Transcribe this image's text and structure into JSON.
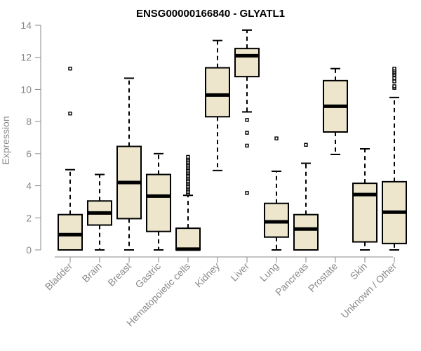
{
  "chart_data": {
    "type": "boxplot",
    "title": "ENSG00000166840 - GLYATL1",
    "xlabel": "",
    "ylabel": "Expression",
    "ylim": [
      0,
      14
    ],
    "yticks": [
      0,
      2,
      4,
      6,
      8,
      10,
      12,
      14
    ],
    "box_color": "#ede6cc",
    "categories": [
      "Bladder",
      "Brain",
      "Breast",
      "Gastric",
      "Hematopoietic cells",
      "Kidney",
      "Liver",
      "Lung",
      "Pancreas",
      "Prostate",
      "Skin",
      "Unknown / Other"
    ],
    "boxes": [
      {
        "whisker_low": 0.0,
        "q1": 0.0,
        "median": 0.95,
        "q3": 2.2,
        "whisker_high": 5.0,
        "outliers": [
          8.5,
          11.3
        ]
      },
      {
        "whisker_low": 0.0,
        "q1": 1.55,
        "median": 2.3,
        "q3": 3.05,
        "whisker_high": 4.7,
        "outliers": []
      },
      {
        "whisker_low": 0.0,
        "q1": 1.95,
        "median": 4.2,
        "q3": 6.45,
        "whisker_high": 10.7,
        "outliers": []
      },
      {
        "whisker_low": 0.0,
        "q1": 1.15,
        "median": 3.35,
        "q3": 4.7,
        "whisker_high": 6.0,
        "outliers": []
      },
      {
        "whisker_low": 0.0,
        "q1": 0.0,
        "median": 0.05,
        "q3": 1.35,
        "whisker_high": 3.4,
        "outliers": [
          3.5,
          3.6,
          3.7,
          3.8,
          3.9,
          4.0,
          4.1,
          4.2,
          4.3,
          4.4,
          4.5,
          4.6,
          4.7,
          4.8,
          4.9,
          5.0,
          5.1,
          5.2,
          5.3,
          5.4,
          5.5,
          5.6,
          5.7,
          5.8
        ]
      },
      {
        "whisker_low": 4.95,
        "q1": 8.3,
        "median": 9.65,
        "q3": 11.35,
        "whisker_high": 13.05,
        "outliers": []
      },
      {
        "whisker_low": 8.6,
        "q1": 10.8,
        "median": 12.1,
        "q3": 12.55,
        "whisker_high": 13.7,
        "outliers": [
          3.55,
          6.5,
          7.3,
          8.1
        ]
      },
      {
        "whisker_low": 0.0,
        "q1": 0.8,
        "median": 1.75,
        "q3": 2.9,
        "whisker_high": 4.9,
        "outliers": [
          6.95
        ]
      },
      {
        "whisker_low": 0.0,
        "q1": 0.0,
        "median": 1.3,
        "q3": 2.2,
        "whisker_high": 5.4,
        "outliers": [
          6.55
        ]
      },
      {
        "whisker_low": 5.95,
        "q1": 7.35,
        "median": 8.95,
        "q3": 10.55,
        "whisker_high": 11.3,
        "outliers": []
      },
      {
        "whisker_low": 0.0,
        "q1": 0.5,
        "median": 3.45,
        "q3": 4.15,
        "whisker_high": 6.3,
        "outliers": []
      },
      {
        "whisker_low": 0.0,
        "q1": 0.4,
        "median": 2.35,
        "q3": 4.25,
        "whisker_high": 9.5,
        "outliers": [
          10.1,
          10.2,
          10.5,
          10.7,
          10.9,
          11.0,
          11.1,
          11.2,
          11.3
        ]
      }
    ]
  }
}
